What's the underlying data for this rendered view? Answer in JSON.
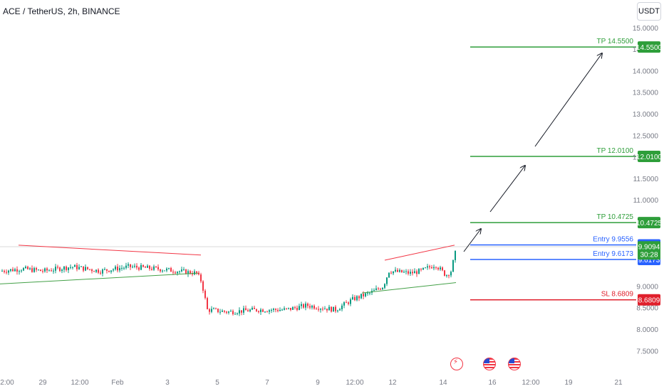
{
  "header": {
    "symbol_title": "ACE / TetherUS, 2h, BINANCE",
    "currency_label": "USDT"
  },
  "colors": {
    "up": "#089981",
    "down": "#f23645",
    "tp_line": "#2e9e3a",
    "entry_line": "#2962ff",
    "sl_line": "#e0202c",
    "pattern_upper": "#f23645",
    "pattern_lower": "#43a047",
    "axis_text": "#787b86",
    "current_price": "#2e9e3a"
  },
  "chart_data": {
    "type": "candlestick",
    "symbol": "ACE / TetherUS",
    "interval": "2h",
    "exchange": "BINANCE",
    "ylim": [
      7.5,
      15.0
    ],
    "y_ticks": [
      "15.0000",
      "14.5000",
      "14.0000",
      "13.5000",
      "13.0000",
      "12.5000",
      "12.0000",
      "11.5000",
      "11.0000",
      "9.0000",
      "8.5000",
      "8.0000",
      "7.5000"
    ],
    "x_ticks": [
      "2:00",
      "29",
      "12:00",
      "Feb",
      "3",
      "5",
      "7",
      "9",
      "12:00",
      "12",
      "14",
      "16",
      "12:00",
      "19",
      "21"
    ],
    "levels": [
      {
        "label": "TP 14.5500",
        "price": 14.55,
        "badge": "14.5500",
        "kind": "tp"
      },
      {
        "label": "TP 12.0100",
        "price": 12.01,
        "badge": "12.0100",
        "kind": "tp"
      },
      {
        "label": "TP 10.4725",
        "price": 10.4725,
        "badge": "10.4725",
        "kind": "tp"
      },
      {
        "label": "Entry 9.9556",
        "price": 9.9556,
        "badge": "9.9556",
        "kind": "entry"
      },
      {
        "label": "Entry 9.6173",
        "price": 9.6173,
        "badge": "9.6173",
        "kind": "entry"
      },
      {
        "label": "SL 8.6809",
        "price": 8.6809,
        "badge": "8.6809",
        "kind": "sl"
      }
    ],
    "current_price": {
      "price": "9.9094",
      "countdown": "30:28"
    },
    "pattern_lines": [
      {
        "kind": "upper",
        "p1": [
          9.95
        ],
        "p2": [
          9.72
        ]
      },
      {
        "kind": "lower",
        "p1": [
          9.05
        ],
        "p2": [
          9.3
        ]
      },
      {
        "kind": "upper",
        "p1": [
          9.6
        ],
        "p2": [
          9.95
        ]
      },
      {
        "kind": "lower",
        "p1": [
          8.84
        ],
        "p2": [
          9.08
        ]
      }
    ]
  }
}
